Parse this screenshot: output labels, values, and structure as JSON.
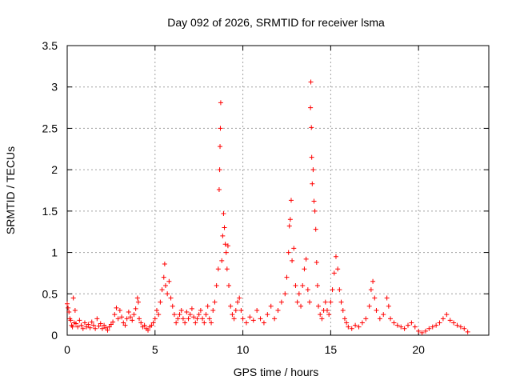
{
  "chart_data": {
    "type": "scatter",
    "title": "Day 092 of 2026, SRMTID for receiver lsma",
    "xlabel": "GPS time / hours",
    "ylabel": "SRMTID / TECUs",
    "xlim": [
      0,
      24
    ],
    "ylim": [
      0,
      3.5
    ],
    "xticks": [
      0,
      5,
      10,
      15,
      20
    ],
    "xtick_labels": [
      "0",
      "5",
      "10",
      "15",
      "20"
    ],
    "yticks": [
      0,
      0.5,
      1,
      1.5,
      2,
      2.5,
      3,
      3.5
    ],
    "ytick_labels": [
      "0",
      "0.5",
      "1",
      "1.5",
      "2",
      "2.5",
      "3",
      "3.5"
    ],
    "grid": true,
    "marker": "plus",
    "color": "#ff0000",
    "series": [
      {
        "name": "SRMTID",
        "points": [
          [
            0.0,
            0.38
          ],
          [
            0.05,
            0.33
          ],
          [
            0.1,
            0.28
          ],
          [
            0.15,
            0.2
          ],
          [
            0.2,
            0.18
          ],
          [
            0.25,
            0.12
          ],
          [
            0.3,
            0.1
          ],
          [
            0.35,
            0.45
          ],
          [
            0.4,
            0.15
          ],
          [
            0.45,
            0.3
          ],
          [
            0.5,
            0.14
          ],
          [
            0.6,
            0.1
          ],
          [
            0.7,
            0.18
          ],
          [
            0.8,
            0.12
          ],
          [
            0.9,
            0.08
          ],
          [
            1.0,
            0.15
          ],
          [
            1.1,
            0.1
          ],
          [
            1.2,
            0.13
          ],
          [
            1.3,
            0.09
          ],
          [
            1.4,
            0.16
          ],
          [
            1.5,
            0.12
          ],
          [
            1.6,
            0.08
          ],
          [
            1.7,
            0.2
          ],
          [
            1.8,
            0.11
          ],
          [
            1.9,
            0.14
          ],
          [
            2.0,
            0.08
          ],
          [
            2.1,
            0.12
          ],
          [
            2.2,
            0.09
          ],
          [
            2.3,
            0.06
          ],
          [
            2.4,
            0.1
          ],
          [
            2.5,
            0.13
          ],
          [
            2.6,
            0.16
          ],
          [
            2.7,
            0.25
          ],
          [
            2.8,
            0.33
          ],
          [
            2.9,
            0.2
          ],
          [
            3.0,
            0.3
          ],
          [
            3.1,
            0.22
          ],
          [
            3.2,
            0.15
          ],
          [
            3.3,
            0.12
          ],
          [
            3.4,
            0.2
          ],
          [
            3.5,
            0.28
          ],
          [
            3.6,
            0.22
          ],
          [
            3.7,
            0.18
          ],
          [
            3.8,
            0.25
          ],
          [
            3.9,
            0.32
          ],
          [
            4.0,
            0.45
          ],
          [
            4.05,
            0.4
          ],
          [
            4.1,
            0.2
          ],
          [
            4.2,
            0.15
          ],
          [
            4.3,
            0.1
          ],
          [
            4.4,
            0.12
          ],
          [
            4.5,
            0.08
          ],
          [
            4.6,
            0.06
          ],
          [
            4.7,
            0.1
          ],
          [
            4.8,
            0.12
          ],
          [
            4.9,
            0.15
          ],
          [
            5.0,
            0.2
          ],
          [
            5.1,
            0.3
          ],
          [
            5.2,
            0.25
          ],
          [
            5.3,
            0.4
          ],
          [
            5.4,
            0.55
          ],
          [
            5.5,
            0.7
          ],
          [
            5.55,
            0.86
          ],
          [
            5.6,
            0.6
          ],
          [
            5.7,
            0.5
          ],
          [
            5.8,
            0.65
          ],
          [
            5.9,
            0.45
          ],
          [
            6.0,
            0.35
          ],
          [
            6.1,
            0.25
          ],
          [
            6.2,
            0.15
          ],
          [
            6.3,
            0.2
          ],
          [
            6.4,
            0.25
          ],
          [
            6.5,
            0.3
          ],
          [
            6.6,
            0.2
          ],
          [
            6.7,
            0.15
          ],
          [
            6.8,
            0.28
          ],
          [
            6.9,
            0.2
          ],
          [
            7.0,
            0.25
          ],
          [
            7.1,
            0.32
          ],
          [
            7.2,
            0.22
          ],
          [
            7.3,
            0.15
          ],
          [
            7.4,
            0.2
          ],
          [
            7.5,
            0.25
          ],
          [
            7.6,
            0.3
          ],
          [
            7.7,
            0.2
          ],
          [
            7.8,
            0.15
          ],
          [
            7.9,
            0.25
          ],
          [
            8.0,
            0.35
          ],
          [
            8.1,
            0.2
          ],
          [
            8.2,
            0.15
          ],
          [
            8.3,
            0.3
          ],
          [
            8.4,
            0.4
          ],
          [
            8.5,
            0.6
          ],
          [
            8.6,
            0.8
          ],
          [
            8.65,
            1.76
          ],
          [
            8.68,
            2.0
          ],
          [
            8.7,
            2.28
          ],
          [
            8.72,
            2.5
          ],
          [
            8.74,
            2.81
          ],
          [
            8.8,
            0.9
          ],
          [
            8.85,
            1.2
          ],
          [
            8.9,
            1.47
          ],
          [
            8.95,
            1.3
          ],
          [
            9.0,
            1.1
          ],
          [
            9.05,
            1.0
          ],
          [
            9.1,
            0.8
          ],
          [
            9.15,
            1.08
          ],
          [
            9.2,
            0.6
          ],
          [
            9.3,
            0.35
          ],
          [
            9.4,
            0.25
          ],
          [
            9.5,
            0.2
          ],
          [
            9.6,
            0.3
          ],
          [
            9.7,
            0.4
          ],
          [
            9.8,
            0.45
          ],
          [
            9.9,
            0.3
          ],
          [
            10.0,
            0.2
          ],
          [
            10.2,
            0.15
          ],
          [
            10.4,
            0.22
          ],
          [
            10.6,
            0.18
          ],
          [
            10.8,
            0.3
          ],
          [
            11.0,
            0.2
          ],
          [
            11.2,
            0.15
          ],
          [
            11.4,
            0.25
          ],
          [
            11.6,
            0.35
          ],
          [
            11.8,
            0.2
          ],
          [
            12.0,
            0.3
          ],
          [
            12.2,
            0.4
          ],
          [
            12.4,
            0.5
          ],
          [
            12.5,
            0.7
          ],
          [
            12.6,
            1.0
          ],
          [
            12.65,
            1.32
          ],
          [
            12.7,
            1.4
          ],
          [
            12.75,
            1.63
          ],
          [
            12.8,
            0.9
          ],
          [
            12.9,
            1.05
          ],
          [
            13.0,
            0.6
          ],
          [
            13.1,
            0.4
          ],
          [
            13.2,
            0.5
          ],
          [
            13.3,
            0.35
          ],
          [
            13.4,
            0.6
          ],
          [
            13.5,
            0.8
          ],
          [
            13.6,
            0.92
          ],
          [
            13.7,
            0.55
          ],
          [
            13.8,
            0.4
          ],
          [
            13.85,
            2.75
          ],
          [
            13.87,
            3.06
          ],
          [
            13.9,
            2.51
          ],
          [
            13.92,
            2.15
          ],
          [
            13.95,
            1.83
          ],
          [
            14.0,
            2.0
          ],
          [
            14.05,
            1.62
          ],
          [
            14.1,
            1.5
          ],
          [
            14.15,
            1.28
          ],
          [
            14.2,
            0.88
          ],
          [
            14.25,
            0.6
          ],
          [
            14.3,
            0.35
          ],
          [
            14.4,
            0.25
          ],
          [
            14.5,
            0.2
          ],
          [
            14.6,
            0.3
          ],
          [
            14.7,
            0.4
          ],
          [
            14.8,
            0.3
          ],
          [
            14.9,
            0.25
          ],
          [
            15.0,
            0.4
          ],
          [
            15.1,
            0.55
          ],
          [
            15.2,
            0.75
          ],
          [
            15.3,
            0.95
          ],
          [
            15.4,
            0.8
          ],
          [
            15.5,
            0.55
          ],
          [
            15.6,
            0.4
          ],
          [
            15.7,
            0.3
          ],
          [
            15.8,
            0.2
          ],
          [
            15.9,
            0.15
          ],
          [
            16.0,
            0.1
          ],
          [
            16.2,
            0.08
          ],
          [
            16.4,
            0.12
          ],
          [
            16.6,
            0.1
          ],
          [
            16.8,
            0.15
          ],
          [
            17.0,
            0.2
          ],
          [
            17.2,
            0.35
          ],
          [
            17.3,
            0.55
          ],
          [
            17.4,
            0.65
          ],
          [
            17.5,
            0.45
          ],
          [
            17.6,
            0.3
          ],
          [
            17.8,
            0.2
          ],
          [
            18.0,
            0.25
          ],
          [
            18.2,
            0.45
          ],
          [
            18.3,
            0.35
          ],
          [
            18.4,
            0.2
          ],
          [
            18.6,
            0.15
          ],
          [
            18.8,
            0.12
          ],
          [
            19.0,
            0.1
          ],
          [
            19.2,
            0.08
          ],
          [
            19.4,
            0.12
          ],
          [
            19.6,
            0.15
          ],
          [
            19.8,
            0.1
          ],
          [
            20.0,
            0.05
          ],
          [
            20.2,
            0.03
          ],
          [
            20.4,
            0.05
          ],
          [
            20.6,
            0.08
          ],
          [
            20.8,
            0.1
          ],
          [
            21.0,
            0.12
          ],
          [
            21.2,
            0.15
          ],
          [
            21.4,
            0.2
          ],
          [
            21.6,
            0.25
          ],
          [
            21.8,
            0.18
          ],
          [
            22.0,
            0.15
          ],
          [
            22.2,
            0.12
          ],
          [
            22.4,
            0.1
          ],
          [
            22.6,
            0.08
          ],
          [
            22.8,
            0.04
          ]
        ]
      }
    ]
  }
}
